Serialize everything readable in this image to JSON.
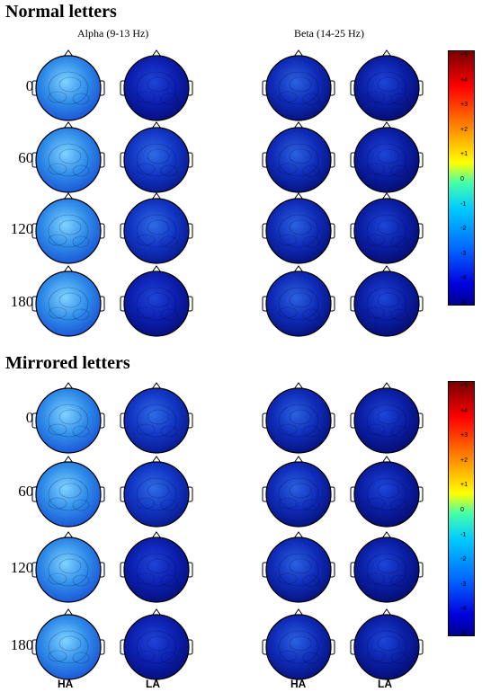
{
  "sections": [
    {
      "title": "Normal letters",
      "band_labels": [
        "Alpha (9-13 Hz)",
        "Beta (14-25 Hz)"
      ],
      "rows": [
        {
          "angle": "0°",
          "maps": [
            "ha-alpha-light",
            "la-alpha-dark",
            "ha-beta-mid",
            "la-beta-dark"
          ]
        },
        {
          "angle": "60°",
          "maps": [
            "ha-alpha-light",
            "la-alpha-mid",
            "ha-beta-mid",
            "la-beta-dark"
          ]
        },
        {
          "angle": "120°",
          "maps": [
            "ha-alpha-light",
            "la-alpha-mid",
            "ha-beta-mid",
            "la-beta-dark"
          ]
        },
        {
          "angle": "180°",
          "maps": [
            "ha-alpha-light",
            "la-alpha-dark",
            "ha-beta-mid",
            "la-beta-dark"
          ]
        }
      ],
      "colorbar": {
        "ticks": [
          "+5",
          "+4",
          "+3",
          "+2",
          "+1",
          "0",
          "-1",
          "-2",
          "-3",
          "-4",
          "-5"
        ]
      }
    },
    {
      "title": "Mirrored letters",
      "band_labels": [],
      "rows": [
        {
          "angle": "0°",
          "maps": [
            "ha-alpha-light",
            "la-alpha-mid",
            "ha-beta-mid",
            "la-beta-dark"
          ]
        },
        {
          "angle": "60°",
          "maps": [
            "ha-alpha-light",
            "la-alpha-mid",
            "ha-beta-mid",
            "la-beta-dark"
          ]
        },
        {
          "angle": "120°",
          "maps": [
            "ha-alpha-light",
            "la-alpha-dark",
            "ha-beta-mid",
            "la-beta-dark"
          ]
        },
        {
          "angle": "180°",
          "maps": [
            "ha-alpha-light",
            "la-alpha-dark",
            "ha-beta-mid",
            "la-beta-dark"
          ]
        }
      ],
      "colorbar": {
        "ticks": [
          "+5",
          "+4",
          "+3",
          "+2",
          "+1",
          "0",
          "-1",
          "-2",
          "-3",
          "-4",
          "-5"
        ]
      }
    }
  ],
  "column_headers": [
    "HA",
    "LA",
    "HA",
    "LA"
  ],
  "colors": {
    "ha-alpha-light": [
      "#7fd3ff",
      "#2f8ce8",
      "#1a55d6"
    ],
    "la-alpha-dark": [
      "#1f44d8",
      "#0c20b0",
      "#060f7c"
    ],
    "la-alpha-mid": [
      "#2f6ce6",
      "#1236c4",
      "#081a8e"
    ],
    "ha-beta-mid": [
      "#2a62e0",
      "#0f2cb8",
      "#06127e"
    ],
    "la-beta-dark": [
      "#1d46da",
      "#0b1fa6",
      "#050d72"
    ]
  }
}
